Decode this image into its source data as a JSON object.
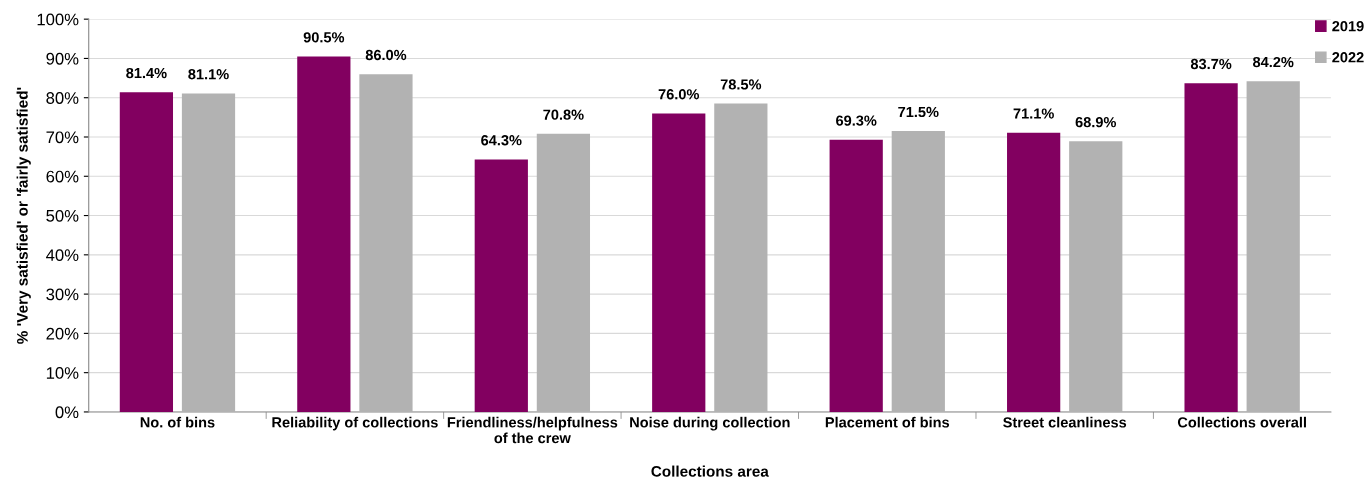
{
  "chart_data": {
    "type": "bar",
    "xlabel": "Collections area",
    "ylabel": "% 'Very satisfied' or 'fairly satisfied'",
    "categories": [
      "No. of bins",
      "Reliability of collections",
      "Friendliness/helpfulness\nof the crew",
      "Noise during collection",
      "Placement of bins",
      "Street cleanliness",
      "Collections overall"
    ],
    "series": [
      {
        "name": "2019",
        "color": "#820060",
        "values": [
          81.4,
          90.5,
          64.3,
          76.0,
          69.3,
          71.1,
          83.7
        ],
        "value_labels": [
          "81.4%",
          "90.5%",
          "64.3%",
          "76.0%",
          "69.3%",
          "71.1%",
          "83.7%"
        ]
      },
      {
        "name": "2022",
        "color": "#b2b2b2",
        "values": [
          81.1,
          86.0,
          70.8,
          78.5,
          71.5,
          68.9,
          84.2
        ],
        "value_labels": [
          "81.1%",
          "86.0%",
          "70.8%",
          "78.5%",
          "71.5%",
          "68.9%",
          "84.2%"
        ]
      }
    ],
    "ylim": [
      0,
      100
    ],
    "yticks": [
      {
        "value": 0,
        "label": "0%"
      },
      {
        "value": 10,
        "label": "10%"
      },
      {
        "value": 20,
        "label": "20%"
      },
      {
        "value": 30,
        "label": "30%"
      },
      {
        "value": 40,
        "label": "40%"
      },
      {
        "value": 50,
        "label": "50%"
      },
      {
        "value": 60,
        "label": "60%"
      },
      {
        "value": 70,
        "label": "70%"
      },
      {
        "value": 80,
        "label": "80%"
      },
      {
        "value": 90,
        "label": "90%"
      },
      {
        "value": 100,
        "label": "100%"
      }
    ],
    "grid": "y",
    "legend": "top right"
  }
}
